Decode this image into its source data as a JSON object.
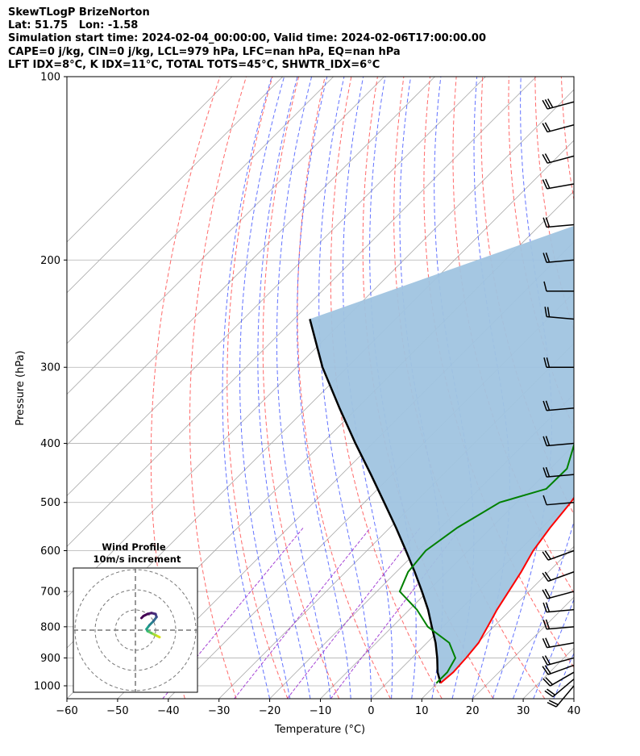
{
  "header": {
    "title": "SkewTLogP BrizeNorton",
    "location": "Lat: 51.75   Lon: -1.58",
    "times": "Simulation start time: 2024-02-04_00:00:00, Valid time: 2024-02-06T17:00:00.00",
    "params": "CAPE=0 j/kg, CIN=0 j/kg, LCL=979 hPa, LFC=nan hPa, EQ=nan hPa",
    "indices": "LFT IDX=8°C, K IDX=11°C, TOTAL TOTS=45°C, SHWTR_IDX=6°C"
  },
  "chart_data": {
    "type": "line",
    "subtype": "skew-t log-p",
    "xlabel": "Temperature (°C)",
    "ylabel": "Pressure (hPa)",
    "xlim": [
      -60,
      40
    ],
    "ylim": [
      1050,
      100
    ],
    "y_scale": "log",
    "grid": true,
    "x_ticks": [
      -60,
      -50,
      -40,
      -30,
      -20,
      -10,
      0,
      10,
      20,
      30,
      40
    ],
    "y_ticks": [
      100,
      200,
      300,
      400,
      500,
      600,
      700,
      800,
      900,
      1000
    ],
    "colors": {
      "temperature": "#ff0000",
      "dewpoint": "#008000",
      "parcel": "#000000",
      "fill": "#a0c4e0",
      "dry_adiabats": "#ff5050",
      "moist_adiabats": "#3c50ff",
      "mixing_ratio": "#9b30d0",
      "isotherms": "#999999"
    },
    "series": [
      {
        "key": "temperature",
        "x": [
          10.6,
          11.0,
          10.7,
          10.2,
          8.8,
          7.3,
          6.0,
          4.6,
          2.8,
          1.6,
          0.7,
          -1.8,
          -4.0,
          -8.0,
          -11.7,
          -19.3,
          -19.5,
          -15.0,
          -7.4,
          -4.4,
          -1.3,
          0.9
        ],
        "y": [
          990,
          950,
          900,
          850,
          800,
          750,
          700,
          650,
          600,
          550,
          500,
          425,
          380,
          320,
          250,
          215,
          200,
          185,
          165,
          150,
          130,
          100
        ]
      },
      {
        "key": "dewpoint",
        "x": [
          9.8,
          9.8,
          8.6,
          4.4,
          -3.0,
          -8.5,
          -15.5,
          -17.7,
          -18.4,
          -16.7,
          -13.3,
          -6.8,
          -6.7,
          -10.2,
          -11.1,
          -16.7,
          -24.5,
          -28.4,
          -27.9,
          -25.5,
          -23.0,
          -20.0,
          -19.5,
          -20.5,
          -19.6,
          -15.6,
          -11.7,
          -8.0
        ],
        "y": [
          990,
          950,
          900,
          850,
          800,
          750,
          700,
          650,
          600,
          550,
          500,
          475,
          440,
          400,
          360,
          300,
          240,
          215,
          200,
          190,
          175,
          165,
          150,
          140,
          130,
          122,
          112,
          100
        ]
      },
      {
        "key": "parcel",
        "x": [
          10.6,
          9.9,
          7.9,
          5.0,
          1.7,
          -2.2,
          -6.3,
          -11.1,
          -16.4,
          -22.3,
          -28.8,
          -36.1,
          -44.2,
          -53.4,
          -63.5,
          -74.9,
          -86.9
        ],
        "y": [
          990,
          979,
          950,
          900,
          850,
          800,
          750,
          700,
          650,
          600,
          550,
          500,
          450,
          400,
          350,
          300,
          250
        ]
      }
    ],
    "winds": [
      {
        "p": 1000,
        "speed_kt": 20,
        "dir": 220
      },
      {
        "p": 975,
        "speed_kt": 20,
        "dir": 230
      },
      {
        "p": 950,
        "speed_kt": 20,
        "dir": 240
      },
      {
        "p": 925,
        "speed_kt": 20,
        "dir": 250
      },
      {
        "p": 900,
        "speed_kt": 20,
        "dir": 255
      },
      {
        "p": 850,
        "speed_kt": 20,
        "dir": 260
      },
      {
        "p": 800,
        "speed_kt": 20,
        "dir": 265
      },
      {
        "p": 750,
        "speed_kt": 20,
        "dir": 265
      },
      {
        "p": 700,
        "speed_kt": 20,
        "dir": 255
      },
      {
        "p": 650,
        "speed_kt": 20,
        "dir": 250
      },
      {
        "p": 600,
        "speed_kt": 20,
        "dir": 250
      },
      {
        "p": 500,
        "speed_kt": 10,
        "dir": 265
      },
      {
        "p": 450,
        "speed_kt": 20,
        "dir": 265
      },
      {
        "p": 400,
        "speed_kt": 20,
        "dir": 265
      },
      {
        "p": 350,
        "speed_kt": 20,
        "dir": 265
      },
      {
        "p": 300,
        "speed_kt": 20,
        "dir": 270
      },
      {
        "p": 250,
        "speed_kt": 20,
        "dir": 275
      },
      {
        "p": 225,
        "speed_kt": 10,
        "dir": 270
      },
      {
        "p": 200,
        "speed_kt": 20,
        "dir": 265
      },
      {
        "p": 175,
        "speed_kt": 20,
        "dir": 265
      },
      {
        "p": 150,
        "speed_kt": 20,
        "dir": 260
      },
      {
        "p": 135,
        "speed_kt": 20,
        "dir": 255
      },
      {
        "p": 120,
        "speed_kt": 20,
        "dir": 255
      },
      {
        "p": 110,
        "speed_kt": 30,
        "dir": 255
      }
    ],
    "hodograph": {
      "title": "Wind Profile",
      "subtitle": "10m/s increment",
      "u": [
        12.0,
        10.0,
        8.0,
        6.0,
        5.5,
        7.0,
        9.0,
        10.5,
        10.0,
        8.0,
        6.0,
        4.0,
        3.0
      ],
      "v": [
        -3.5,
        -2.5,
        -1.5,
        -0.5,
        0.5,
        2.5,
        4.5,
        6.5,
        8.0,
        8.5,
        8.0,
        7.0,
        6.0
      ]
    }
  }
}
